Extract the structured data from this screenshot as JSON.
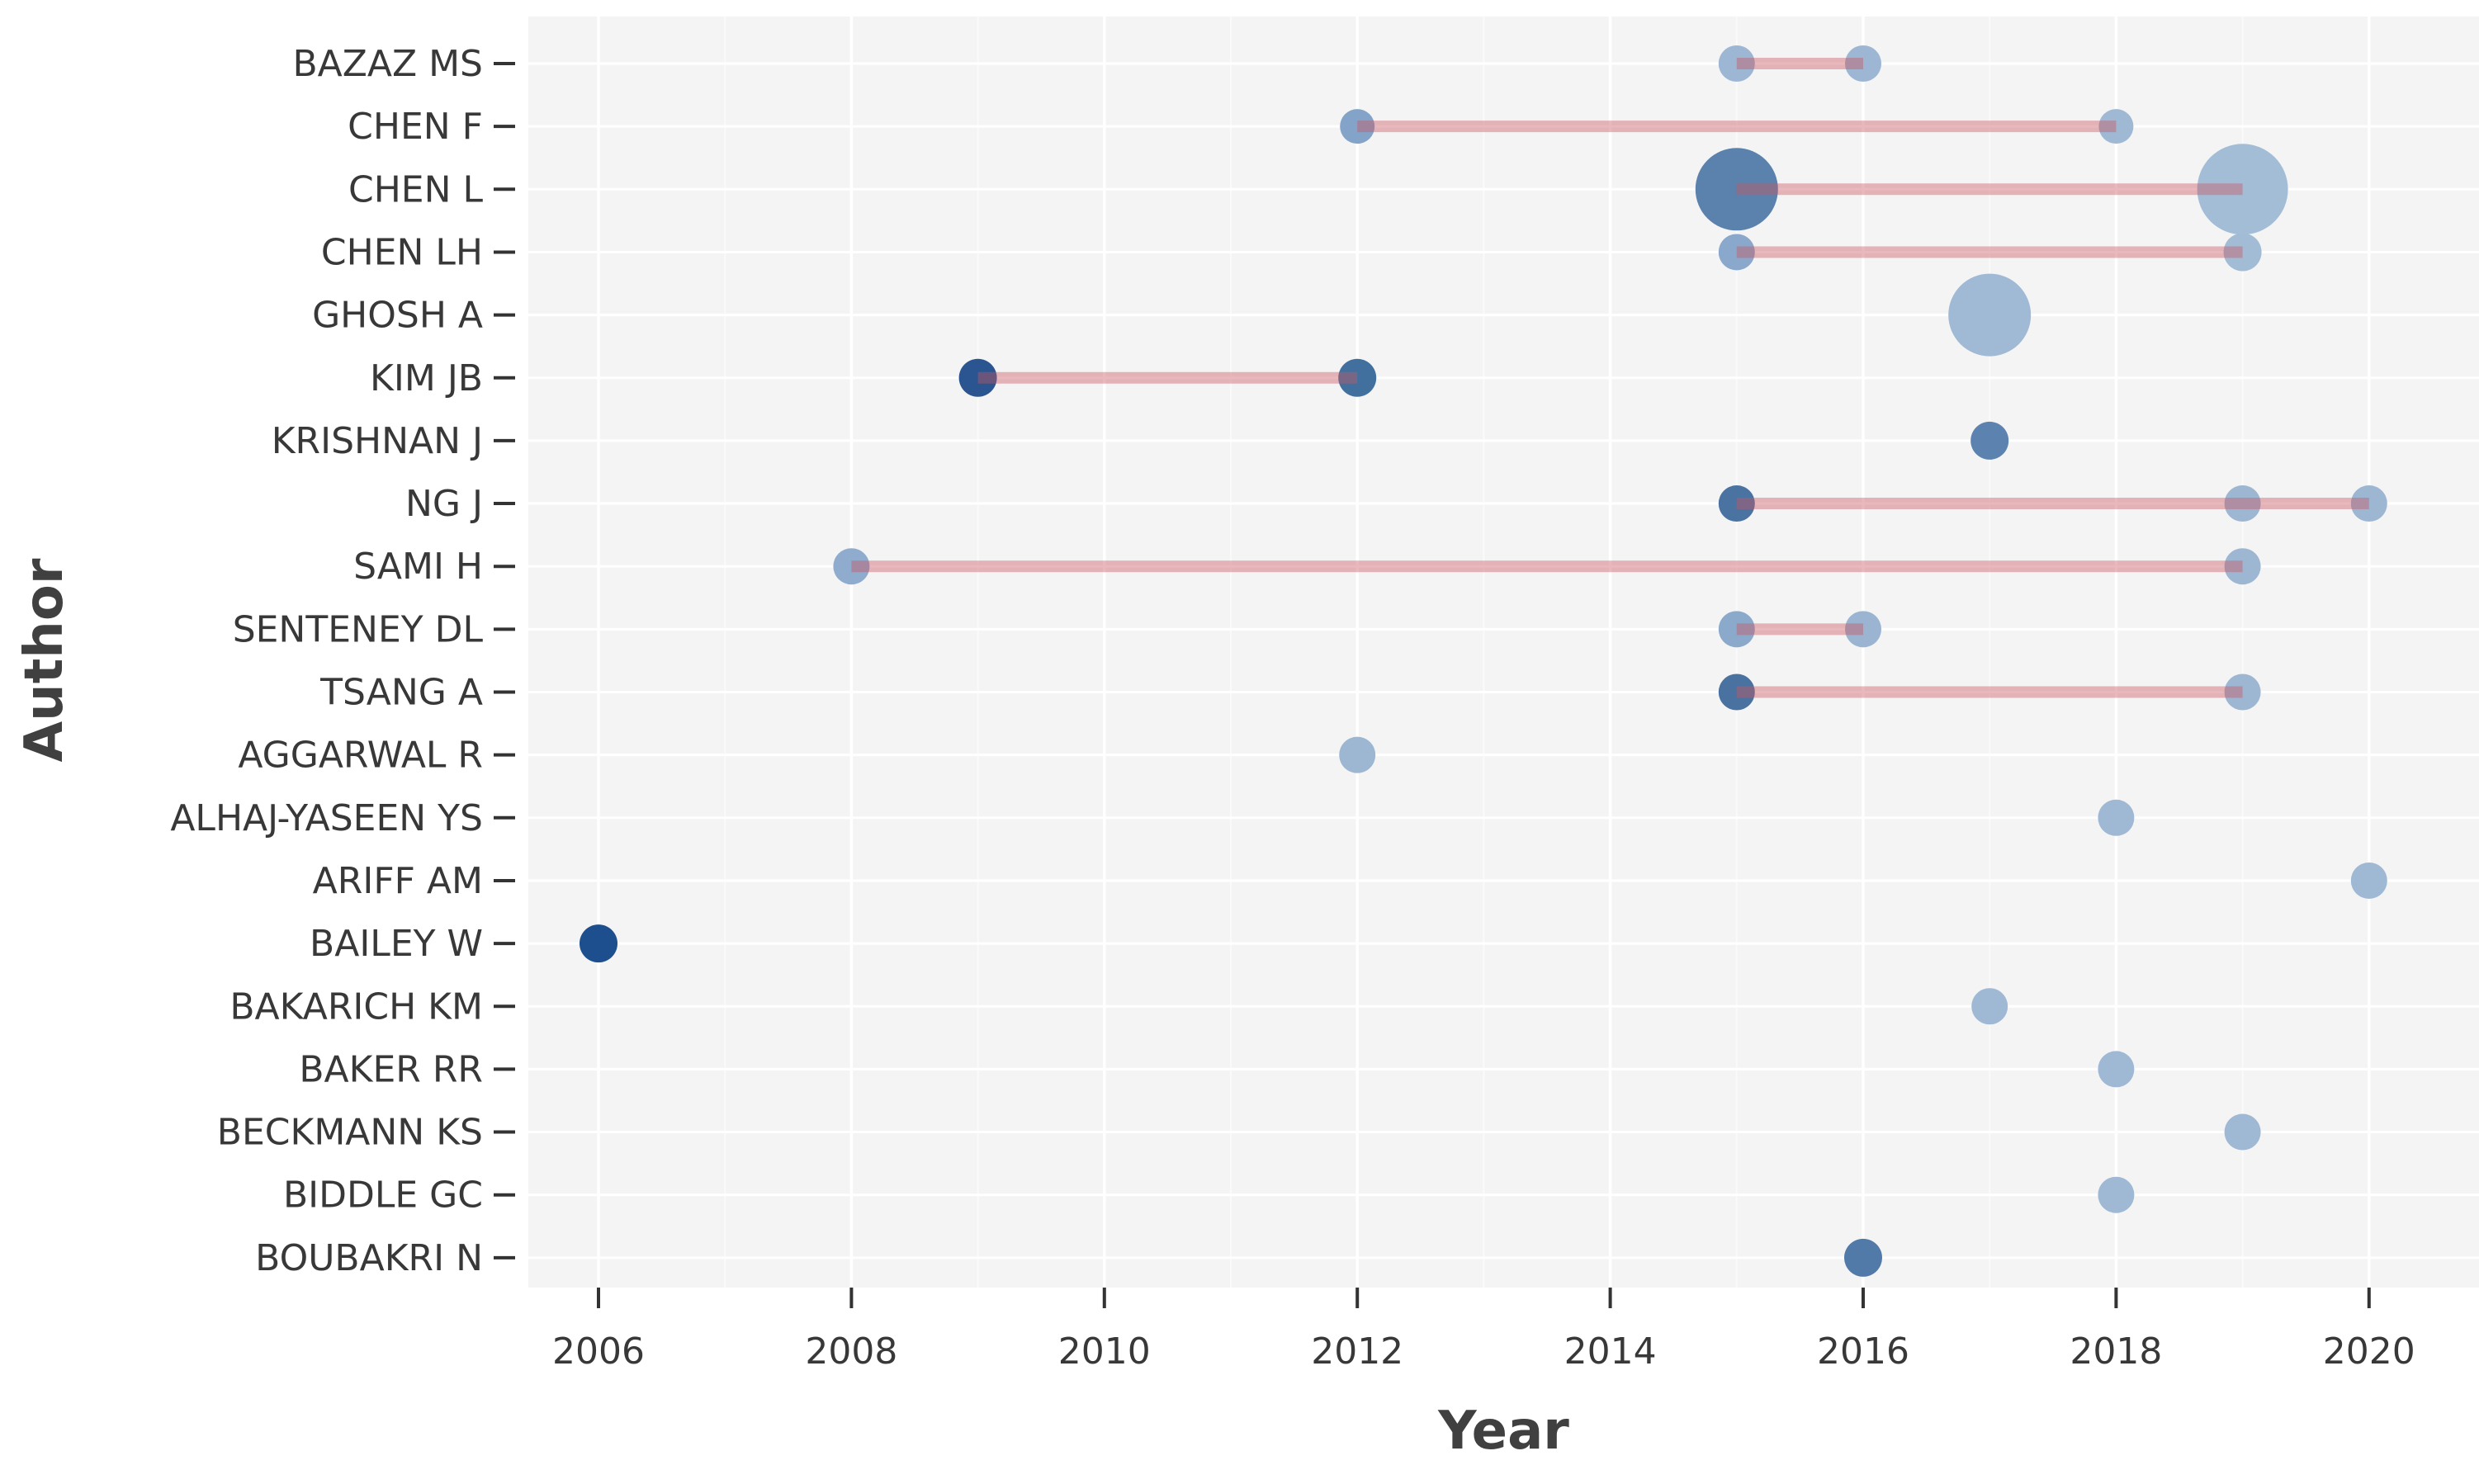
{
  "chart_data": {
    "type": "scatter",
    "subtype": "authors-production-over-time-bubble-timeline",
    "title": "",
    "xlabel": "Year",
    "ylabel": "Author",
    "x_ticks": [
      2006,
      2008,
      2010,
      2012,
      2014,
      2016,
      2018,
      2020
    ],
    "x_minor_ticks": [
      2005,
      2007,
      2009,
      2011,
      2013,
      2015,
      2017,
      2019
    ],
    "x_range": [
      2005.45,
      2020.87
    ],
    "grid": true,
    "legend_position": "none",
    "authors": [
      {
        "name": "BAZAZ MS",
        "line": [
          2015,
          2016
        ],
        "points": [
          {
            "year": 2015,
            "r": 22,
            "color": "#9cb6d4"
          },
          {
            "year": 2016,
            "r": 22,
            "color": "#9cb6d4"
          }
        ]
      },
      {
        "name": "CHEN F",
        "line": [
          2012,
          2018
        ],
        "points": [
          {
            "year": 2012,
            "r": 21,
            "color": "#83a3c8"
          },
          {
            "year": 2018,
            "r": 21,
            "color": "#9fb8d4"
          }
        ]
      },
      {
        "name": "CHEN L",
        "line": [
          2015,
          2019
        ],
        "points": [
          {
            "year": 2015,
            "r": 50,
            "color": "#5b81ad"
          },
          {
            "year": 2019,
            "r": 55,
            "color": "#a4bdd7"
          }
        ]
      },
      {
        "name": "CHEN LH",
        "line": [
          2015,
          2019
        ],
        "points": [
          {
            "year": 2015,
            "r": 22,
            "color": "#8aa8cc"
          },
          {
            "year": 2019,
            "r": 23,
            "color": "#a3bcd6"
          }
        ]
      },
      {
        "name": "GHOSH A",
        "line": null,
        "points": [
          {
            "year": 2017,
            "r": 50,
            "color": "#a0b9d4"
          }
        ]
      },
      {
        "name": "KIM JB",
        "line": [
          2009,
          2012
        ],
        "points": [
          {
            "year": 2009,
            "r": 23,
            "color": "#2a5590"
          },
          {
            "year": 2012,
            "r": 23,
            "color": "#41709f"
          }
        ]
      },
      {
        "name": "KRISHNAN J",
        "line": null,
        "points": [
          {
            "year": 2017,
            "r": 23,
            "color": "#5c83b0"
          }
        ]
      },
      {
        "name": "NG J",
        "line": [
          2015,
          2020
        ],
        "points": [
          {
            "year": 2015,
            "r": 22,
            "color": "#4a73a2"
          },
          {
            "year": 2019,
            "r": 22,
            "color": "#9db6d2"
          },
          {
            "year": 2020,
            "r": 22,
            "color": "#9db6d2"
          }
        ]
      },
      {
        "name": "SAMI H",
        "line": [
          2008,
          2019
        ],
        "points": [
          {
            "year": 2008,
            "r": 22,
            "color": "#8fabce"
          },
          {
            "year": 2019,
            "r": 22,
            "color": "#9db6d2"
          }
        ]
      },
      {
        "name": "SENTENEY DL",
        "line": [
          2015,
          2016
        ],
        "points": [
          {
            "year": 2015,
            "r": 22,
            "color": "#8ba9cb"
          },
          {
            "year": 2016,
            "r": 22,
            "color": "#9ab4d1"
          }
        ]
      },
      {
        "name": "TSANG A",
        "line": [
          2015,
          2019
        ],
        "points": [
          {
            "year": 2015,
            "r": 22,
            "color": "#4a72a1"
          },
          {
            "year": 2019,
            "r": 22,
            "color": "#9db6d2"
          }
        ]
      },
      {
        "name": "AGGARWAL R",
        "line": null,
        "points": [
          {
            "year": 2012,
            "r": 22,
            "color": "#9db6d2"
          }
        ]
      },
      {
        "name": "ALHAJ-YASEEN YS",
        "line": null,
        "points": [
          {
            "year": 2018,
            "r": 22,
            "color": "#9fb8d4"
          }
        ]
      },
      {
        "name": "ARIFF AM",
        "line": null,
        "points": [
          {
            "year": 2020,
            "r": 22,
            "color": "#9fb8d4"
          }
        ]
      },
      {
        "name": "BAILEY W",
        "line": null,
        "points": [
          {
            "year": 2006,
            "r": 23,
            "color": "#1d4e8e"
          }
        ]
      },
      {
        "name": "BAKARICH KM",
        "line": null,
        "points": [
          {
            "year": 2017,
            "r": 22,
            "color": "#9fb8d4"
          }
        ]
      },
      {
        "name": "BAKER RR",
        "line": null,
        "points": [
          {
            "year": 2018,
            "r": 22,
            "color": "#9fb8d4"
          }
        ]
      },
      {
        "name": "BECKMANN KS",
        "line": null,
        "points": [
          {
            "year": 2019,
            "r": 22,
            "color": "#9fb8d4"
          }
        ]
      },
      {
        "name": "BIDDLE GC",
        "line": null,
        "points": [
          {
            "year": 2018,
            "r": 22,
            "color": "#9fb8d4"
          }
        ]
      },
      {
        "name": "BOUBAKRI N",
        "line": null,
        "points": [
          {
            "year": 2016,
            "r": 23,
            "color": "#527aa8"
          }
        ]
      }
    ]
  },
  "style": {
    "panel_bg": "#f4f4f4",
    "page_bg": "#ffffff",
    "grid_major": "#ffffff",
    "grid_minor_opacity": 0.55,
    "timeline_color": "#c7565f",
    "timeline_opacity": 0.42,
    "timeline_width": 14,
    "tick_color": "#333333",
    "tick_label_color": "#383838",
    "axis_title_color": "#404040"
  }
}
